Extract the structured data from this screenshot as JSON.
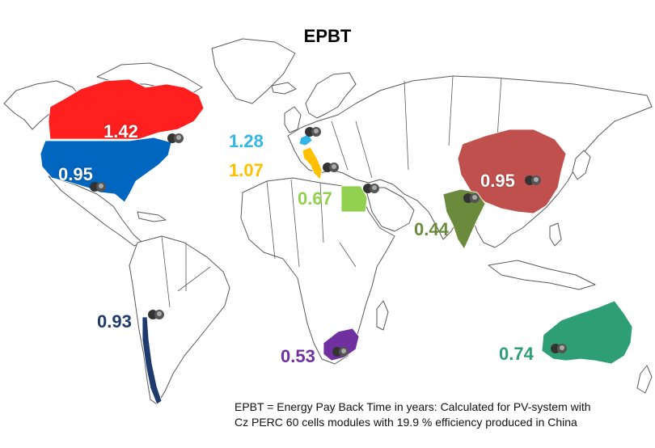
{
  "title": "EPBT",
  "colors": {
    "usa": "#0066c0",
    "canada": "#ff1f1f",
    "china": "#c0504d",
    "india": "#6b8a3c",
    "egypt": "#92d050",
    "italy": "#ffc000",
    "germany": "#33b5e5",
    "chile": "#1f3b6e",
    "south_africa": "#7030a0",
    "australia": "#2e9e77",
    "land": "#ffffff",
    "border": "#5a5a5a"
  },
  "regions": [
    {
      "id": "canada",
      "value": "1.42",
      "color": "#ff1f1f"
    },
    {
      "id": "usa",
      "value": "0.95",
      "color": "#0066c0"
    },
    {
      "id": "germany",
      "value": "1.28",
      "color": "#33b5e5"
    },
    {
      "id": "italy",
      "value": "1.07",
      "color": "#ffc000"
    },
    {
      "id": "egypt",
      "value": "0.67",
      "color": "#92d050"
    },
    {
      "id": "china",
      "value": "0.95",
      "color": "#c0504d"
    },
    {
      "id": "india",
      "value": "0.44",
      "color": "#6b8a3c"
    },
    {
      "id": "chile",
      "value": "0.93",
      "color": "#1f3b6e"
    },
    {
      "id": "south_africa",
      "value": "0.53",
      "color": "#7030a0"
    },
    {
      "id": "australia",
      "value": "0.74",
      "color": "#2e9e77"
    }
  ],
  "note": {
    "line1": "EPBT = Energy Pay Back Time in years: Calculated for PV-system with",
    "line2": "Cz PERC 60 cells modules with 19.9 % efficiency produced in China"
  }
}
